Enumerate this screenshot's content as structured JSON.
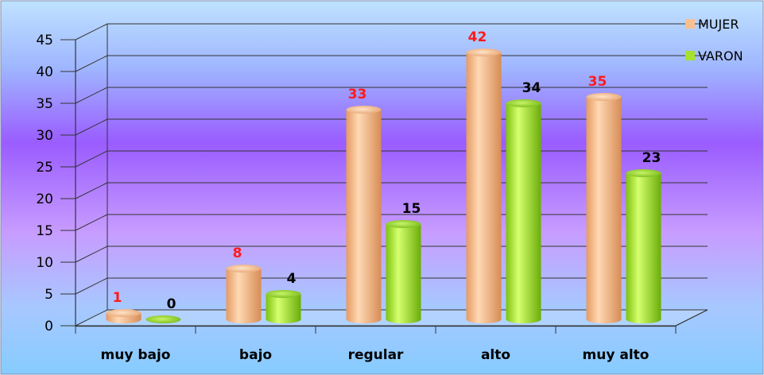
{
  "chart_data": {
    "type": "bar",
    "categories": [
      "muy bajo",
      "bajo",
      "regular",
      "alto",
      "muy alto"
    ],
    "series": [
      {
        "name": "MUJER",
        "values": [
          1,
          8,
          33,
          42,
          35
        ],
        "color": "#f8c090",
        "label_color": "#ff1a1a"
      },
      {
        "name": "VARON",
        "values": [
          0,
          4,
          15,
          34,
          23
        ],
        "color": "#a8e030",
        "label_color": "#000000"
      }
    ],
    "y_ticks": [
      "0",
      "5",
      "10",
      "15",
      "20",
      "25",
      "30",
      "35",
      "40",
      "45"
    ],
    "ylim": [
      0,
      45
    ],
    "grid": true,
    "legend_position": "top-right",
    "title": "",
    "xlabel": "",
    "ylabel": ""
  }
}
